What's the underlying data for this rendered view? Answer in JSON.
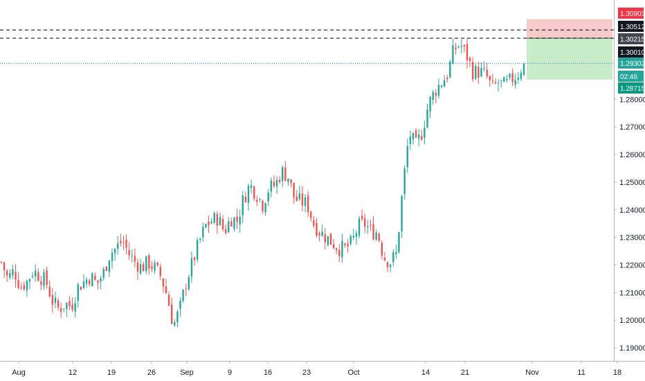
{
  "colors": {
    "up": "#26a69a",
    "down": "#ef5350",
    "current_line": "#2196f3",
    "level_line": "#000000",
    "stop_zone": "#f8caca",
    "target_zone": "#c8ecc8",
    "tag_red": "#f23645",
    "tag_black": "#131722",
    "tag_teal": "#26a69a",
    "tag_green": "#089981"
  },
  "chart_data": {
    "type": "candlestick",
    "symbol_pair": "GBPUSD-style",
    "ylim": [
      1.185,
      1.3112
    ],
    "x_axis_labels": [
      "Aug",
      "12",
      "19",
      "26",
      "Sep",
      "9",
      "16",
      "23",
      "Oct",
      "14",
      "21",
      "Nov",
      "11",
      "18"
    ],
    "y_axis_ticks": [
      "1.19000",
      "1.20000",
      "1.21000",
      "1.22000",
      "1.23000",
      "1.24000",
      "1.25000",
      "1.26000",
      "1.27000",
      "1.28000",
      "1.30010"
    ],
    "y_axis_tick_values": [
      1.19,
      1.2,
      1.21,
      1.22,
      1.23,
      1.24,
      1.25,
      1.26,
      1.27,
      1.28,
      1.3001
    ],
    "price_tags": [
      {
        "label": "1.30903",
        "value": 1.30903,
        "color": "#f23645"
      },
      {
        "label": "1.30512",
        "value": 1.30512,
        "color": "#131722"
      },
      {
        "label": "1.30215",
        "value": 1.30215,
        "color": "#434651"
      },
      {
        "label": "1.30010",
        "value": 1.3001,
        "color": "#131722"
      },
      {
        "label": "1.29302",
        "value": 1.29302,
        "color": "#26a69a"
      },
      {
        "label": "02:46",
        "value": 1.2905,
        "color": "#26a69a"
      },
      {
        "label": "1.28715",
        "value": 1.28715,
        "color": "#089981"
      }
    ],
    "horizontal_levels": [
      {
        "value": 1.30512,
        "style": "dashed"
      },
      {
        "value": 1.30215,
        "style": "dashed"
      },
      {
        "value": 1.29302,
        "style": "dotted"
      }
    ],
    "position_zones": {
      "stop": {
        "from": 1.30215,
        "to": 1.30903
      },
      "target": {
        "from": 1.28715,
        "to": 1.30215
      },
      "entry": 1.30215
    },
    "close_path": [
      [
        0,
        1.221
      ],
      [
        4,
        1.215
      ],
      [
        8,
        1.218
      ],
      [
        12,
        1.212
      ],
      [
        16,
        1.214
      ],
      [
        20,
        1.218
      ],
      [
        24,
        1.216
      ],
      [
        28,
        1.214
      ],
      [
        32,
        1.207
      ],
      [
        36,
        1.204
      ],
      [
        40,
        1.206
      ],
      [
        44,
        1.205
      ],
      [
        48,
        1.212
      ],
      [
        52,
        1.214
      ],
      [
        56,
        1.216
      ],
      [
        60,
        1.213
      ],
      [
        64,
        1.217
      ],
      [
        68,
        1.224
      ],
      [
        72,
        1.226
      ],
      [
        76,
        1.229
      ],
      [
        80,
        1.224
      ],
      [
        84,
        1.221
      ],
      [
        88,
        1.219
      ],
      [
        92,
        1.221
      ],
      [
        96,
        1.219
      ],
      [
        100,
        1.216
      ],
      [
        104,
        1.209
      ],
      [
        108,
        1.198
      ],
      [
        112,
        1.204
      ],
      [
        116,
        1.214
      ],
      [
        120,
        1.221
      ],
      [
        124,
        1.228
      ],
      [
        128,
        1.234
      ],
      [
        132,
        1.236
      ],
      [
        136,
        1.237
      ],
      [
        140,
        1.232
      ],
      [
        144,
        1.237
      ],
      [
        148,
        1.236
      ],
      [
        152,
        1.244
      ],
      [
        156,
        1.249
      ],
      [
        160,
        1.246
      ],
      [
        164,
        1.242
      ],
      [
        168,
        1.248
      ],
      [
        172,
        1.249
      ],
      [
        176,
        1.254
      ],
      [
        180,
        1.252
      ],
      [
        184,
        1.244
      ],
      [
        188,
        1.243
      ],
      [
        192,
        1.242
      ],
      [
        196,
        1.235
      ],
      [
        200,
        1.232
      ],
      [
        204,
        1.23
      ],
      [
        208,
        1.228
      ],
      [
        212,
        1.226
      ],
      [
        216,
        1.226
      ],
      [
        220,
        1.228
      ],
      [
        224,
        1.234
      ],
      [
        228,
        1.235
      ],
      [
        232,
        1.232
      ],
      [
        236,
        1.232
      ],
      [
        240,
        1.223
      ],
      [
        244,
        1.221
      ],
      [
        248,
        1.224
      ],
      [
        252,
        1.248
      ],
      [
        256,
        1.268
      ],
      [
        260,
        1.263
      ],
      [
        264,
        1.268
      ],
      [
        268,
        1.278
      ],
      [
        272,
        1.283
      ],
      [
        276,
        1.286
      ],
      [
        280,
        1.289
      ],
      [
        284,
        1.298
      ],
      [
        288,
        1.3
      ],
      [
        292,
        1.296
      ],
      [
        296,
        1.29
      ],
      [
        300,
        1.29
      ],
      [
        304,
        1.289
      ],
      [
        308,
        1.284
      ],
      [
        312,
        1.286
      ],
      [
        316,
        1.285
      ],
      [
        320,
        1.287
      ],
      [
        324,
        1.289
      ],
      [
        328,
        1.293
      ]
    ]
  }
}
